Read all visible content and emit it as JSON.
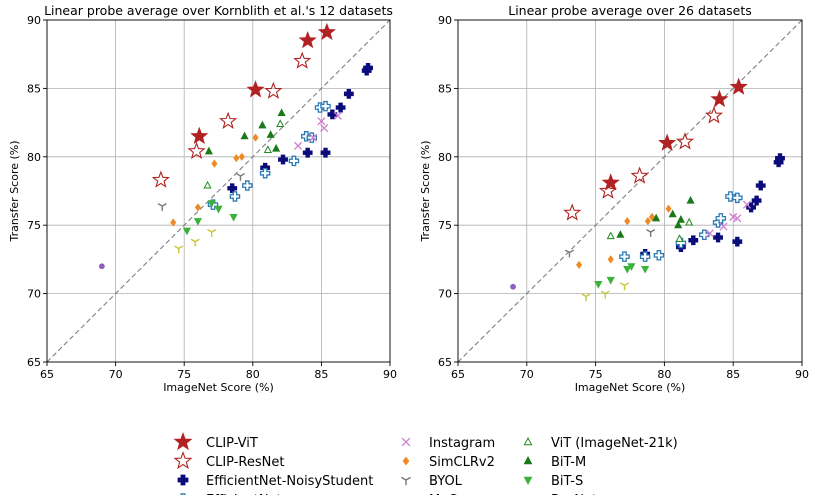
{
  "chart_data": [
    {
      "type": "scatter",
      "title": "Linear probe average over Kornblith et al.'s 12 datasets",
      "xlabel": "ImageNet Score (%)",
      "ylabel": "Transfer Score (%)",
      "xlim": [
        65,
        90
      ],
      "ylim": [
        65,
        90
      ],
      "xticks": [
        "65",
        "70",
        "75",
        "80",
        "85",
        "90"
      ],
      "yticks": [
        "65",
        "70",
        "75",
        "80",
        "85",
        "90"
      ],
      "grid": true,
      "diagonal": true,
      "series": [
        {
          "name": "CLIP-ViT",
          "points": [
            [
              76.1,
              81.5
            ],
            [
              80.2,
              84.9
            ],
            [
              84.0,
              88.5
            ],
            [
              85.4,
              89.1
            ]
          ]
        },
        {
          "name": "CLIP-ResNet",
          "points": [
            [
              73.3,
              78.3
            ],
            [
              75.9,
              80.4
            ],
            [
              78.2,
              82.6
            ],
            [
              81.5,
              84.8
            ],
            [
              83.6,
              87.0
            ]
          ]
        },
        {
          "name": "EfficientNet-NoisyStudent",
          "points": [
            [
              78.5,
              77.7
            ],
            [
              80.9,
              79.2
            ],
            [
              82.2,
              79.8
            ],
            [
              84.0,
              80.3
            ],
            [
              85.3,
              80.3
            ],
            [
              85.8,
              83.1
            ],
            [
              86.4,
              83.6
            ],
            [
              87.0,
              84.6
            ],
            [
              88.3,
              86.3
            ],
            [
              88.4,
              86.5
            ]
          ]
        },
        {
          "name": "EfficientNet",
          "points": [
            [
              77.1,
              76.5
            ],
            [
              78.7,
              77.1
            ],
            [
              79.6,
              77.9
            ],
            [
              80.9,
              78.8
            ],
            [
              83.0,
              79.7
            ],
            [
              83.9,
              81.5
            ],
            [
              84.3,
              81.4
            ],
            [
              84.9,
              83.6
            ],
            [
              85.3,
              83.7
            ]
          ]
        },
        {
          "name": "Instagram",
          "points": [
            [
              83.3,
              80.8
            ],
            [
              84.4,
              81.4
            ],
            [
              85.2,
              82.1
            ],
            [
              85.0,
              82.6
            ],
            [
              86.2,
              83.0
            ]
          ]
        },
        {
          "name": "SimCLRv2",
          "points": [
            [
              74.2,
              75.2
            ],
            [
              76.0,
              76.3
            ],
            [
              77.2,
              79.5
            ],
            [
              78.8,
              79.9
            ],
            [
              79.2,
              80.0
            ],
            [
              80.2,
              81.4
            ]
          ]
        },
        {
          "name": "BYOL",
          "points": [
            [
              73.4,
              76.4
            ],
            [
              79.1,
              78.6
            ]
          ]
        },
        {
          "name": "MoCo",
          "points": [
            [
              74.6,
              73.3
            ],
            [
              75.8,
              73.8
            ],
            [
              77.0,
              74.5
            ]
          ]
        },
        {
          "name": "ViT (ImageNet-21k)",
          "points": [
            [
              76.7,
              77.9
            ],
            [
              81.1,
              80.5
            ],
            [
              82.0,
              82.4
            ]
          ]
        },
        {
          "name": "BiT-M",
          "points": [
            [
              76.8,
              80.4
            ],
            [
              79.4,
              81.5
            ],
            [
              80.7,
              82.3
            ],
            [
              81.3,
              81.6
            ],
            [
              81.7,
              80.6
            ],
            [
              82.1,
              83.2
            ]
          ]
        },
        {
          "name": "BiT-S",
          "points": [
            [
              75.2,
              74.6
            ],
            [
              76.0,
              75.3
            ],
            [
              77.0,
              76.6
            ],
            [
              77.5,
              76.2
            ],
            [
              78.6,
              75.6
            ]
          ]
        },
        {
          "name": "ResNet",
          "points": [
            [
              69.0,
              72.0
            ]
          ]
        }
      ]
    },
    {
      "type": "scatter",
      "title": "Linear probe average over 26 datasets",
      "xlabel": "ImageNet Score (%)",
      "ylabel": "Transfer Score (%)",
      "xlim": [
        65,
        90
      ],
      "ylim": [
        65,
        90
      ],
      "xticks": [
        "65",
        "70",
        "75",
        "80",
        "85",
        "90"
      ],
      "yticks": [
        "65",
        "70",
        "75",
        "80",
        "85",
        "90"
      ],
      "grid": true,
      "diagonal": true,
      "series": [
        {
          "name": "CLIP-ViT",
          "points": [
            [
              76.1,
              78.1
            ],
            [
              80.2,
              81.0
            ],
            [
              84.0,
              84.2
            ],
            [
              85.4,
              85.1
            ]
          ]
        },
        {
          "name": "CLIP-ResNet",
          "points": [
            [
              73.3,
              75.9
            ],
            [
              75.9,
              77.5
            ],
            [
              78.2,
              78.6
            ],
            [
              81.5,
              81.1
            ],
            [
              83.6,
              83.0
            ]
          ]
        },
        {
          "name": "EfficientNet-NoisyStudent",
          "points": [
            [
              78.6,
              72.9
            ],
            [
              81.2,
              73.4
            ],
            [
              82.1,
              73.9
            ],
            [
              83.9,
              74.1
            ],
            [
              85.3,
              73.8
            ],
            [
              86.3,
              76.3
            ],
            [
              86.7,
              76.8
            ],
            [
              87.0,
              77.9
            ],
            [
              88.3,
              79.6
            ],
            [
              88.4,
              79.9
            ]
          ]
        },
        {
          "name": "EfficientNet",
          "points": [
            [
              77.1,
              72.7
            ],
            [
              78.6,
              72.7
            ],
            [
              79.6,
              72.8
            ],
            [
              81.2,
              73.7
            ],
            [
              82.9,
              74.3
            ],
            [
              83.9,
              75.2
            ],
            [
              84.1,
              75.5
            ],
            [
              84.8,
              77.1
            ],
            [
              85.3,
              77.0
            ]
          ]
        },
        {
          "name": "Instagram",
          "points": [
            [
              83.3,
              74.4
            ],
            [
              84.3,
              74.9
            ],
            [
              85.0,
              75.6
            ],
            [
              85.3,
              75.5
            ],
            [
              86.0,
              76.5
            ]
          ]
        },
        {
          "name": "SimCLRv2",
          "points": [
            [
              73.8,
              72.1
            ],
            [
              76.1,
              72.5
            ],
            [
              77.3,
              75.3
            ],
            [
              78.8,
              75.3
            ],
            [
              79.1,
              75.6
            ],
            [
              80.3,
              76.2
            ]
          ]
        },
        {
          "name": "BYOL",
          "points": [
            [
              73.1,
              73.0
            ],
            [
              79.0,
              74.5
            ]
          ]
        },
        {
          "name": "MoCo",
          "points": [
            [
              74.3,
              69.8
            ],
            [
              75.7,
              70.0
            ],
            [
              77.1,
              70.6
            ]
          ]
        },
        {
          "name": "ViT (ImageNet-21k)",
          "points": [
            [
              76.1,
              74.2
            ],
            [
              81.1,
              74.0
            ],
            [
              81.8,
              75.2
            ]
          ]
        },
        {
          "name": "BiT-M",
          "points": [
            [
              76.8,
              74.3
            ],
            [
              79.4,
              75.5
            ],
            [
              80.6,
              75.8
            ],
            [
              81.2,
              75.4
            ],
            [
              81.0,
              75.0
            ],
            [
              81.9,
              76.8
            ]
          ]
        },
        {
          "name": "BiT-S",
          "points": [
            [
              75.2,
              70.7
            ],
            [
              76.1,
              71.0
            ],
            [
              77.3,
              71.8
            ],
            [
              77.6,
              72.0
            ],
            [
              78.6,
              71.8
            ]
          ]
        },
        {
          "name": "ResNet",
          "points": [
            [
              69.0,
              70.5
            ]
          ]
        }
      ]
    }
  ],
  "styles": [
    {
      "name": "CLIP-ViT",
      "marker": "star",
      "fill": "#b22222",
      "stroke": "#b22222"
    },
    {
      "name": "CLIP-ResNet",
      "marker": "star",
      "fill": "none",
      "stroke": "#b22222"
    },
    {
      "name": "EfficientNet-NoisyStudent",
      "marker": "plus",
      "fill": "#0b0b7a",
      "stroke": "#0b0b7a"
    },
    {
      "name": "EfficientNet",
      "marker": "plus",
      "fill": "none",
      "stroke": "#2a7ab4"
    },
    {
      "name": "Instagram",
      "marker": "x",
      "fill": "none",
      "stroke": "#d07fd0"
    },
    {
      "name": "SimCLRv2",
      "marker": "diamond",
      "fill": "#f08a24",
      "stroke": "#f08a24"
    },
    {
      "name": "BYOL",
      "marker": "tri_down",
      "fill": "none",
      "stroke": "#777777"
    },
    {
      "name": "MoCo",
      "marker": "tri_down",
      "fill": "none",
      "stroke": "#c6c63a"
    },
    {
      "name": "ViT (ImageNet-21k)",
      "marker": "triangle",
      "fill": "none",
      "stroke": "#1f8a1f"
    },
    {
      "name": "BiT-M",
      "marker": "triangle",
      "fill": "#1a7a1a",
      "stroke": "#1a7a1a"
    },
    {
      "name": "BiT-S",
      "marker": "triangle_down",
      "fill": "#3bb23b",
      "stroke": "#3bb23b"
    },
    {
      "name": "ResNet",
      "marker": "circle",
      "fill": "#8f5fbf",
      "stroke": "#8f5fbf"
    }
  ],
  "legend": {
    "columns": [
      [
        "CLIP-ViT",
        "CLIP-ResNet",
        "EfficientNet-NoisyStudent",
        "EfficientNet"
      ],
      [
        "Instagram",
        "SimCLRv2",
        "BYOL",
        "MoCo"
      ],
      [
        "ViT (ImageNet-21k)",
        "BiT-M",
        "BiT-S",
        "ResNet"
      ]
    ]
  },
  "colors": {
    "grid": "#b0b0b0",
    "diagonal": "#7f7f7f"
  }
}
